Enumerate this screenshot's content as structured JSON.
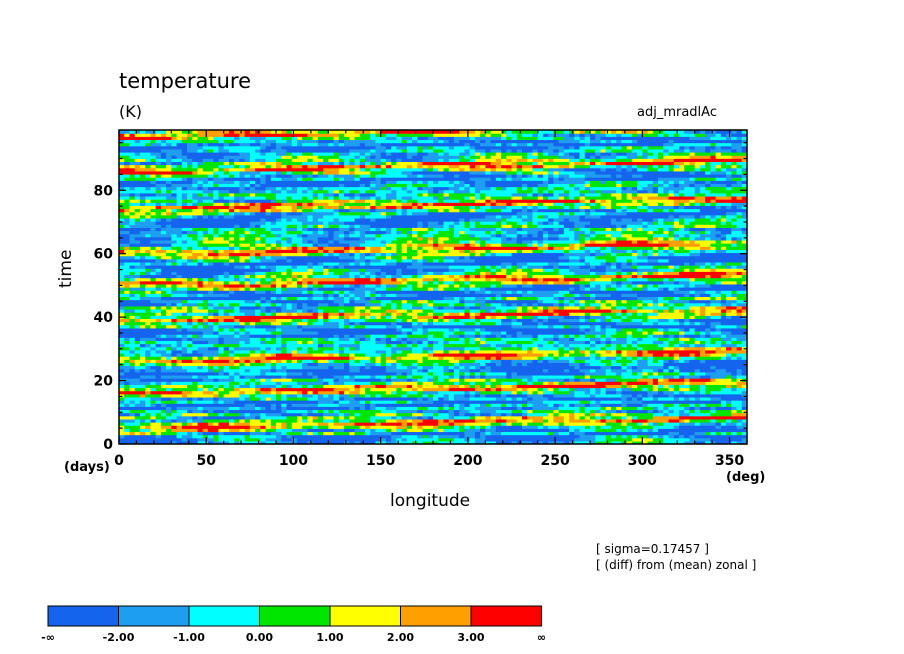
{
  "figure": {
    "title": "temperature",
    "units": "(K)",
    "experiment": "adj_mradlAc",
    "xlabel": "longitude",
    "ylabel": "time",
    "xunit": "(deg)",
    "yunit": "(days)",
    "note_sigma": "[ sigma=0.17457 ]",
    "note_diff": "[ (diff) from (mean) zonal ]"
  },
  "chart_data": {
    "type": "heatmap",
    "title": "temperature",
    "subtitle": "(K)",
    "xlabel": "longitude",
    "ylabel": "time",
    "xlim": [
      0,
      360
    ],
    "ylim": [
      0,
      99
    ],
    "xticks": [
      0,
      50,
      100,
      150,
      200,
      250,
      300,
      350
    ],
    "yticks": [
      0,
      20,
      40,
      60,
      80
    ],
    "colorbar": {
      "levels": [
        "-∞",
        "-2.00",
        "-1.00",
        "0.00",
        "1.00",
        "2.00",
        "3.00",
        "∞"
      ],
      "colors": [
        "#1464ee",
        "#1e9ef0",
        "#00ffff",
        "#00e600",
        "#ffff00",
        "#ffa000",
        "#ff0000"
      ]
    },
    "features": {
      "description_of_bands": "eastward-tilted positive anomaly streaks",
      "bands": [
        {
          "t0": 5,
          "slope": 0.13
        },
        {
          "t0": 16,
          "slope": 0.13
        },
        {
          "t0": 26,
          "slope": 0.13
        },
        {
          "t0": 39,
          "slope": 0.13
        },
        {
          "t0": 50,
          "slope": 0.13
        },
        {
          "t0": 60,
          "slope": 0.13
        },
        {
          "t0": 74,
          "slope": 0.13
        },
        {
          "t0": 86,
          "slope": 0.13
        },
        {
          "t0": 97,
          "slope": 0.13
        }
      ]
    }
  }
}
